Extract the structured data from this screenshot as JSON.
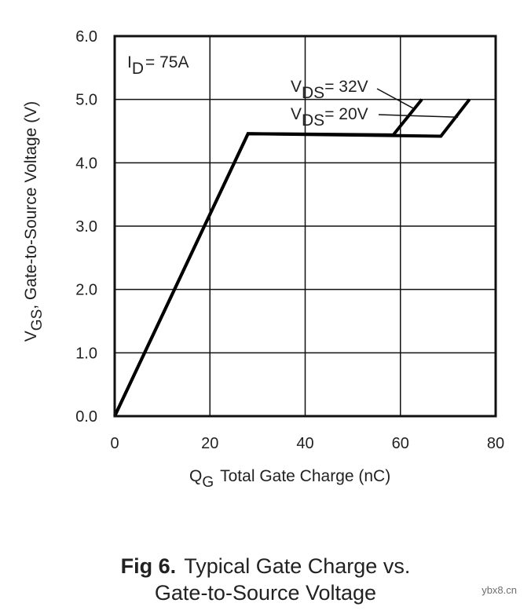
{
  "chart_data": {
    "type": "line",
    "title": "",
    "xlabel_main": "Q",
    "xlabel_sub": "G",
    "xlabel_rest": "Total Gate Charge (nC)",
    "ylabel_main": "V",
    "ylabel_sub": "GS",
    "ylabel_rest": ", Gate-to-Source Voltage (V)",
    "xlim": [
      0,
      80
    ],
    "ylim": [
      0,
      6
    ],
    "xticks": [
      0,
      20,
      40,
      60,
      80
    ],
    "xtick_labels": [
      "0",
      "20",
      "40",
      "60",
      "80"
    ],
    "yticks": [
      0,
      1,
      2,
      3,
      4,
      5,
      6
    ],
    "ytick_labels": [
      "0.0",
      "1.0",
      "2.0",
      "3.0",
      "4.0",
      "5.0",
      "6.0"
    ],
    "grid": true,
    "condition": {
      "main": "I",
      "sub": "D",
      "rest": "= 75A"
    },
    "series": [
      {
        "name": "VDS = 32V",
        "label_main": "V",
        "label_sub": "DS",
        "label_rest": "= 32V",
        "x": [
          0,
          28,
          58.5,
          64.5
        ],
        "y": [
          0,
          4.46,
          4.44,
          5.0
        ]
      },
      {
        "name": "VDS = 20V",
        "label_main": "V",
        "label_sub": "DS",
        "label_rest": "= 20V",
        "x": [
          0,
          28,
          68.5,
          74.5
        ],
        "y": [
          0,
          4.46,
          4.42,
          5.0
        ]
      }
    ]
  },
  "caption": {
    "fig_label": "Fig 6.",
    "line1": "Typical Gate Charge vs.",
    "line2": "Gate-to-Source Voltage"
  },
  "watermark": "ybx8.cn"
}
